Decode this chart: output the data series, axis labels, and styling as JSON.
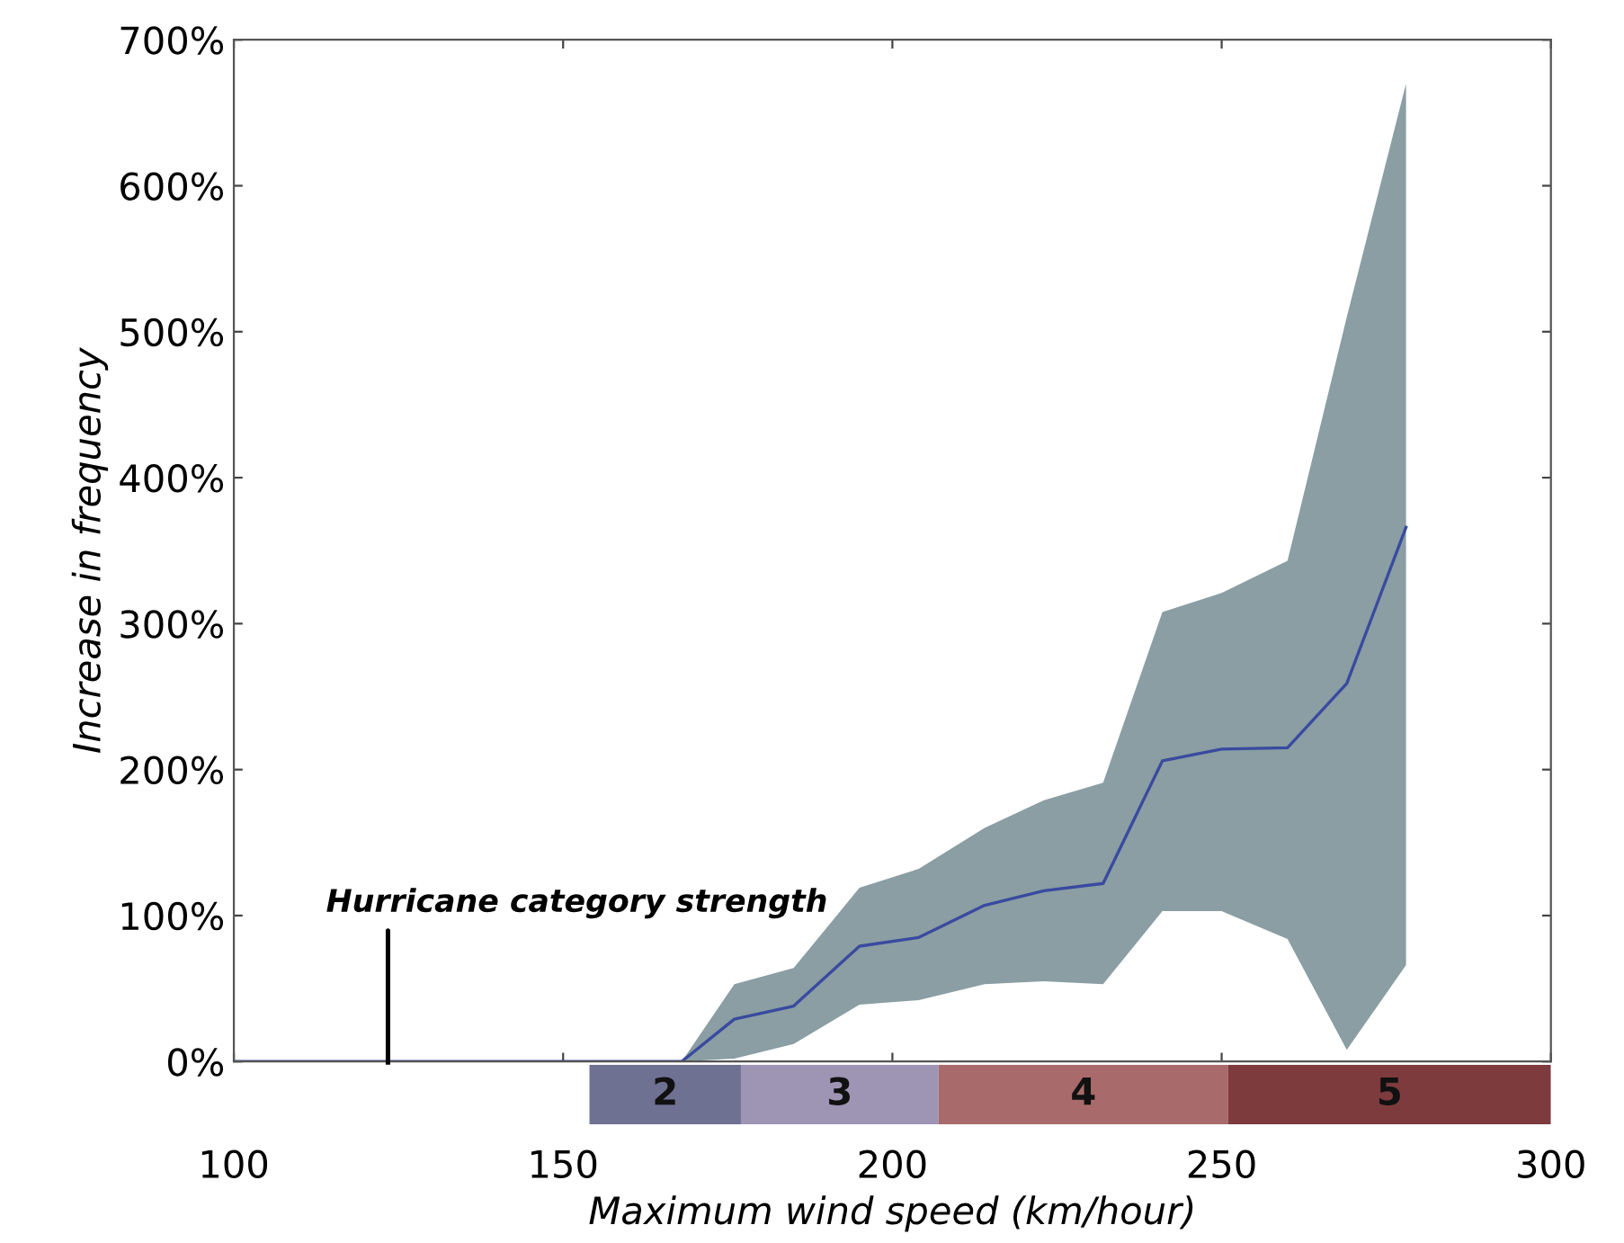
{
  "chart_data": [
    {
      "type": "line",
      "ylabel": "Increase in frequency",
      "xlim": [
        100,
        300
      ],
      "xticks": [
        100,
        150,
        200,
        250,
        300
      ],
      "ylim": [
        0,
        700
      ],
      "yticks": [
        {
          "value": 0,
          "label": "0%"
        },
        {
          "value": 100,
          "label": "100%"
        },
        {
          "value": 200,
          "label": "200%"
        },
        {
          "value": 300,
          "label": "300%"
        },
        {
          "value": 400,
          "label": "400%"
        },
        {
          "value": 500,
          "label": "500%"
        },
        {
          "value": 600,
          "label": "600%"
        },
        {
          "value": 700,
          "label": "700%"
        }
      ],
      "tick_labels": "y",
      "marker": "none",
      "line_style": "solid",
      "series": [
        {
          "color": "#3a4aa0",
          "x": [
            100,
            168,
            176,
            185,
            195,
            204,
            214,
            223,
            232,
            241,
            250,
            260,
            269,
            278
          ],
          "values": [
            0,
            0,
            29,
            38,
            79,
            85,
            107,
            117,
            122,
            206,
            214,
            215,
            259,
            366
          ],
          "lower": [
            0,
            0,
            2,
            12,
            39,
            42,
            53,
            55,
            53,
            103,
            103,
            84,
            8,
            66
          ],
          "upper": [
            0,
            0,
            53,
            64,
            119,
            132,
            160,
            179,
            191,
            308,
            321,
            343,
            510,
            670
          ]
        }
      ],
      "annotations": [
        "Hurricane category strength"
      ]
    },
    {
      "type": "bar",
      "orientation": "horizontal",
      "xlabel": "Maximum wind speed (km/hour)",
      "xlim": [
        100,
        300
      ],
      "xticks": [
        100,
        150,
        200,
        250,
        300
      ],
      "tick_labels": "x",
      "categories": [
        null
      ],
      "series": [
        {
          "name": "2",
          "values": [
            23
          ],
          "base": [
            154
          ],
          "color": "#6e7192"
        },
        {
          "name": "3",
          "values": [
            30
          ],
          "base": [
            177
          ],
          "color": "#9e94b4"
        },
        {
          "name": "4",
          "values": [
            44
          ],
          "base": [
            207
          ],
          "color": "#a86a6a"
        },
        {
          "name": "5",
          "values": [
            49
          ],
          "base": [
            251
          ],
          "color": "#7d3b3e"
        }
      ]
    }
  ]
}
